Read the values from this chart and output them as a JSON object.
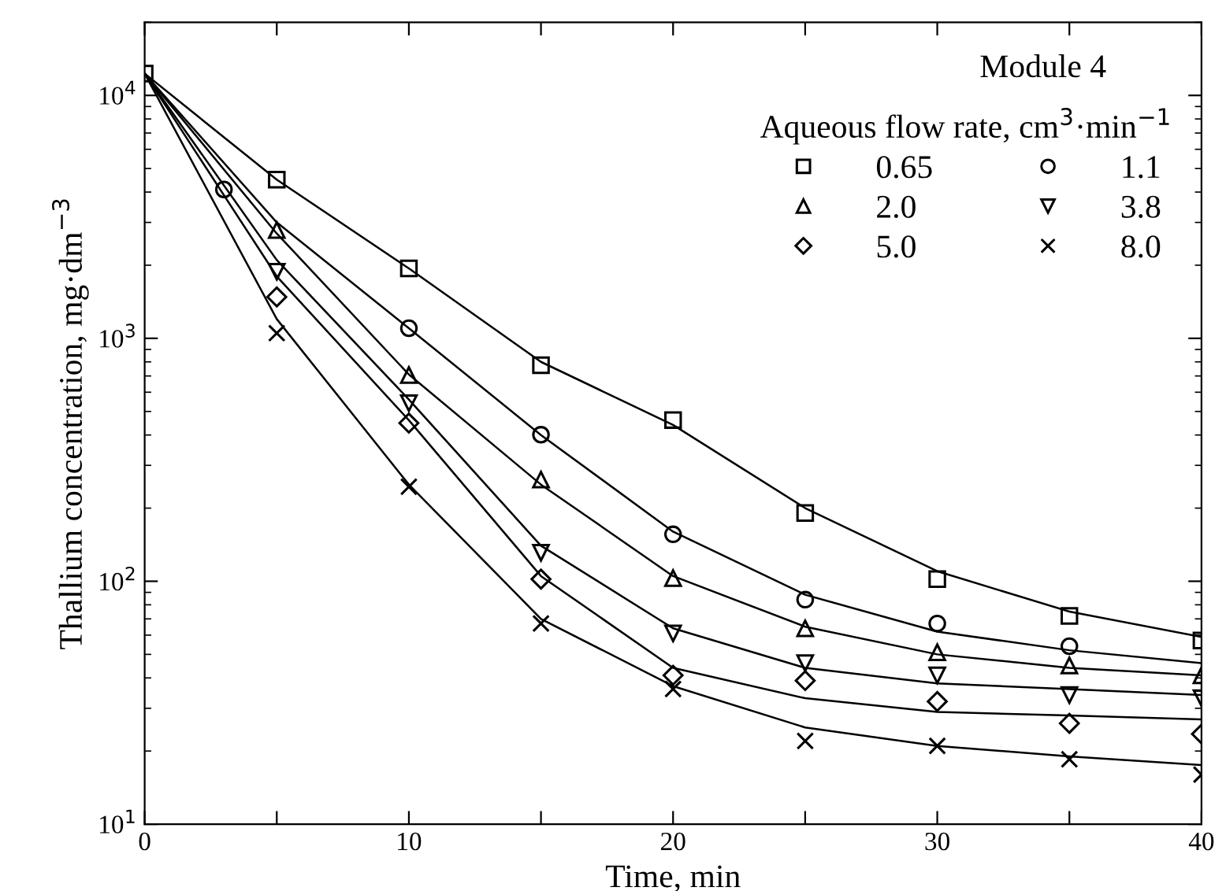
{
  "chart_data": {
    "type": "scatter",
    "xlabel": "Time, min",
    "ylabel": "Thallium concentration, mg·dm$^{−3}$",
    "legend_title": "Aqueous flow rate, cm$^{3}$·min$^{−1}$",
    "annotations": [
      "Module 4"
    ],
    "log": "y",
    "xlim": [
      0,
      40
    ],
    "ylim": [
      10,
      20000
    ],
    "xticks": [
      0,
      {
        "value": 5,
        "label": null
      },
      10,
      {
        "value": 15,
        "label": null
      },
      20,
      {
        "value": 25,
        "label": null
      },
      30,
      {
        "value": 35,
        "label": null
      },
      40
    ],
    "yticks": [
      {
        "value": 10,
        "label": "10$^{1}$"
      },
      {
        "value": 100,
        "label": "10$^{2}$"
      },
      {
        "value": 1000,
        "label": "10$^{3}$"
      },
      {
        "value": 10000,
        "label": "10$^{4}$"
      }
    ],
    "grid": false,
    "legend": "top right",
    "series": [
      {
        "name": "0.65",
        "marker": "square",
        "color": "#000000",
        "x": [
          0,
          5,
          10,
          15,
          20,
          25,
          30,
          35,
          40
        ],
        "values": [
          12300,
          4500,
          1940,
          775,
          461,
          191,
          102,
          72,
          57
        ]
      },
      {
        "name": "1.1",
        "marker": "circle",
        "color": "#000000",
        "x": [
          3,
          10,
          15,
          20,
          25,
          30,
          35
        ],
        "values": [
          4100,
          1100,
          401,
          156,
          84,
          67,
          54
        ]
      },
      {
        "name": "2.0",
        "marker": "triangle",
        "color": "#000000",
        "x": [
          5,
          10,
          15,
          20,
          25,
          30,
          35,
          40
        ],
        "values": [
          2790,
          706,
          262,
          103,
          64,
          51,
          45,
          41
        ]
      },
      {
        "name": "3.8",
        "marker": "triangle_down",
        "color": "#000000",
        "x": [
          5,
          10,
          15,
          20,
          25,
          30,
          35,
          40
        ],
        "values": [
          1880,
          541,
          131,
          61,
          46,
          41,
          34,
          33
        ]
      },
      {
        "name": "5.0",
        "marker": "diamond",
        "color": "#000000",
        "x": [
          5,
          10,
          15,
          20,
          25,
          30,
          35,
          40
        ],
        "values": [
          1480,
          448,
          102,
          41,
          39,
          32,
          26,
          23.5
        ]
      },
      {
        "name": "8.0",
        "marker": "cross",
        "color": "#000000",
        "x": [
          5,
          10,
          15,
          20,
          25,
          30,
          35,
          40
        ],
        "values": [
          1050,
          245,
          67,
          36,
          22,
          21,
          18.5,
          16
        ]
      },
      {
        "type": "line",
        "marker": "none",
        "color": "#000000",
        "x": [
          0,
          5,
          10,
          15,
          20,
          25,
          30,
          35,
          40
        ],
        "values": [
          12300,
          4500,
          1940,
          800,
          440,
          200,
          110,
          75,
          59
        ]
      },
      {
        "type": "line",
        "marker": "none",
        "color": "#000000",
        "x": [
          0,
          5,
          10,
          15,
          20,
          25,
          30,
          35,
          40
        ],
        "values": [
          12300,
          3000,
          1100,
          400,
          160,
          88,
          62,
          52,
          46
        ]
      },
      {
        "type": "line",
        "marker": "none",
        "color": "#000000",
        "x": [
          0,
          5,
          10,
          15,
          20,
          25,
          30,
          35,
          40
        ],
        "values": [
          12300,
          2700,
          710,
          250,
          105,
          65,
          50,
          44,
          41
        ]
      },
      {
        "type": "line",
        "marker": "none",
        "color": "#000000",
        "x": [
          0,
          5,
          10,
          15,
          20,
          25,
          30,
          35,
          40
        ],
        "values": [
          12300,
          2100,
          560,
          140,
          64,
          44,
          38,
          36,
          34
        ]
      },
      {
        "type": "line",
        "marker": "none",
        "color": "#000000",
        "x": [
          0,
          5,
          10,
          15,
          20,
          25,
          30,
          35,
          40
        ],
        "values": [
          12300,
          1800,
          460,
          105,
          44,
          33,
          29,
          28,
          27
        ]
      },
      {
        "type": "line",
        "marker": "none",
        "color": "#000000",
        "x": [
          0,
          5,
          10,
          15,
          20,
          25,
          30,
          35,
          40
        ],
        "values": [
          12300,
          1200,
          250,
          70,
          37,
          25,
          21,
          19,
          17.5
        ]
      }
    ]
  }
}
